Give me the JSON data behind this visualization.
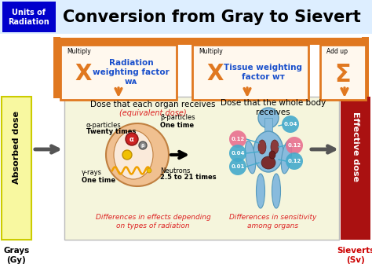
{
  "title": "Conversion from Gray to Sievert",
  "title_badge": "Units of\nRadiation",
  "title_badge_color": "#0000cc",
  "title_bg_color": "#ddeeff",
  "box1_label": "Multiply",
  "box1_symbol": "X",
  "box1_text": "Radiation\nweighting factor\nwᴀ",
  "box2_label": "Multiply",
  "box2_symbol": "X",
  "box2_text": "Tissue weighting\nfactor wᴛ",
  "box3_label": "Add up",
  "box3_symbol": "Σ",
  "box_border_color": "#e07820",
  "box_text_color": "#1a50cc",
  "box_fill_color": "#fff8ee",
  "arrow_color": "#e07820",
  "left_bar_text": "Absorbed dose",
  "left_bar_bg": "#f8f8a0",
  "left_bar_border": "#cccc00",
  "bottom_left_text": "Grays\n(Gy)",
  "right_bar_bg": "#aa1111",
  "right_bar_text_color": "white",
  "right_bar_text": "Effective dose",
  "bottom_right_text": "Sieverts\n(Sv)",
  "bottom_right_color": "#cc0000",
  "main_box_bg": "#f5f5dc",
  "main_box_border": "#bbbbbb",
  "main_title1": "Dose that each organ receives",
  "main_title2": "(equivalent dose)",
  "main_title3": "Dose that the whole body\nreceives",
  "main_title2_color": "#dd2222",
  "bottom_annotation1": "Differences in effects depending\non types of radiation",
  "bottom_annotation2": "Differences in sensitivity\namong organs",
  "bottom_annotation_color": "#dd2222",
  "bubble_pink": "#e87090",
  "bubble_teal": "#44aacc",
  "bubble_green": "#66bbaa"
}
